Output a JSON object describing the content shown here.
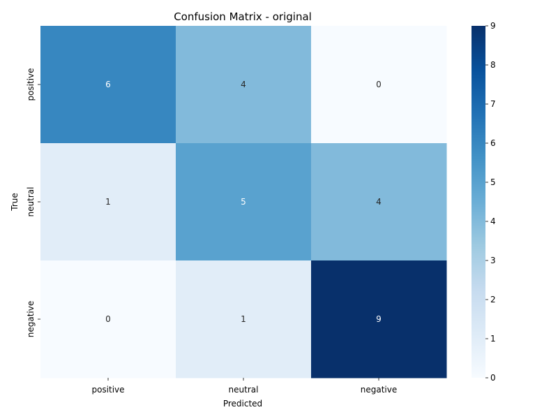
{
  "chart_data": {
    "type": "heatmap",
    "title": "Confusion Matrix - original",
    "xlabel": "Predicted",
    "ylabel": "True",
    "x_categories": [
      "positive",
      "neutral",
      "negative"
    ],
    "y_categories": [
      "positive",
      "neutral",
      "negative"
    ],
    "values": [
      [
        6,
        4,
        0
      ],
      [
        1,
        5,
        4
      ],
      [
        0,
        1,
        9
      ]
    ],
    "colormap": "Blues",
    "colorbar": {
      "range": [
        0,
        9
      ],
      "ticks": [
        0,
        1,
        2,
        3,
        4,
        5,
        6,
        7,
        8,
        9
      ]
    },
    "colors": {
      "low": "#f7fbff",
      "high": "#08306b",
      "annotation_dark": "#262626",
      "annotation_light": "#ffffff"
    }
  }
}
